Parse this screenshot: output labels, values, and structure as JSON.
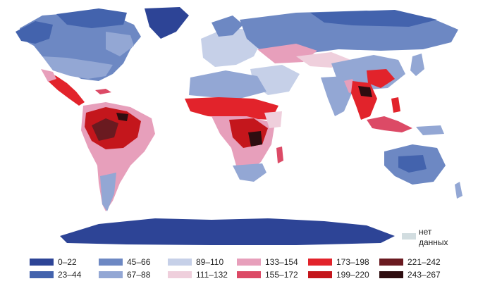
{
  "no_data": {
    "label_line1": "нет",
    "label_line2": "данных",
    "color": "#d2dde0"
  },
  "legend": [
    {
      "label": "0–22",
      "color": "#2d4496"
    },
    {
      "label": "23–44",
      "color": "#4363ad"
    },
    {
      "label": "45–66",
      "color": "#6d88c3"
    },
    {
      "label": "67–88",
      "color": "#93a7d4"
    },
    {
      "label": "89–110",
      "color": "#c6d0e8"
    },
    {
      "label": "111–132",
      "color": "#efcfdc"
    },
    {
      "label": "133–154",
      "color": "#e79fbb"
    },
    {
      "label": "155–172",
      "color": "#dc4a66"
    },
    {
      "label": "173–198",
      "color": "#e2232b"
    },
    {
      "label": "199–220",
      "color": "#c4161c"
    },
    {
      "label": "221–242",
      "color": "#6a1a20"
    },
    {
      "label": "243–267",
      "color": "#2e0d10"
    }
  ]
}
